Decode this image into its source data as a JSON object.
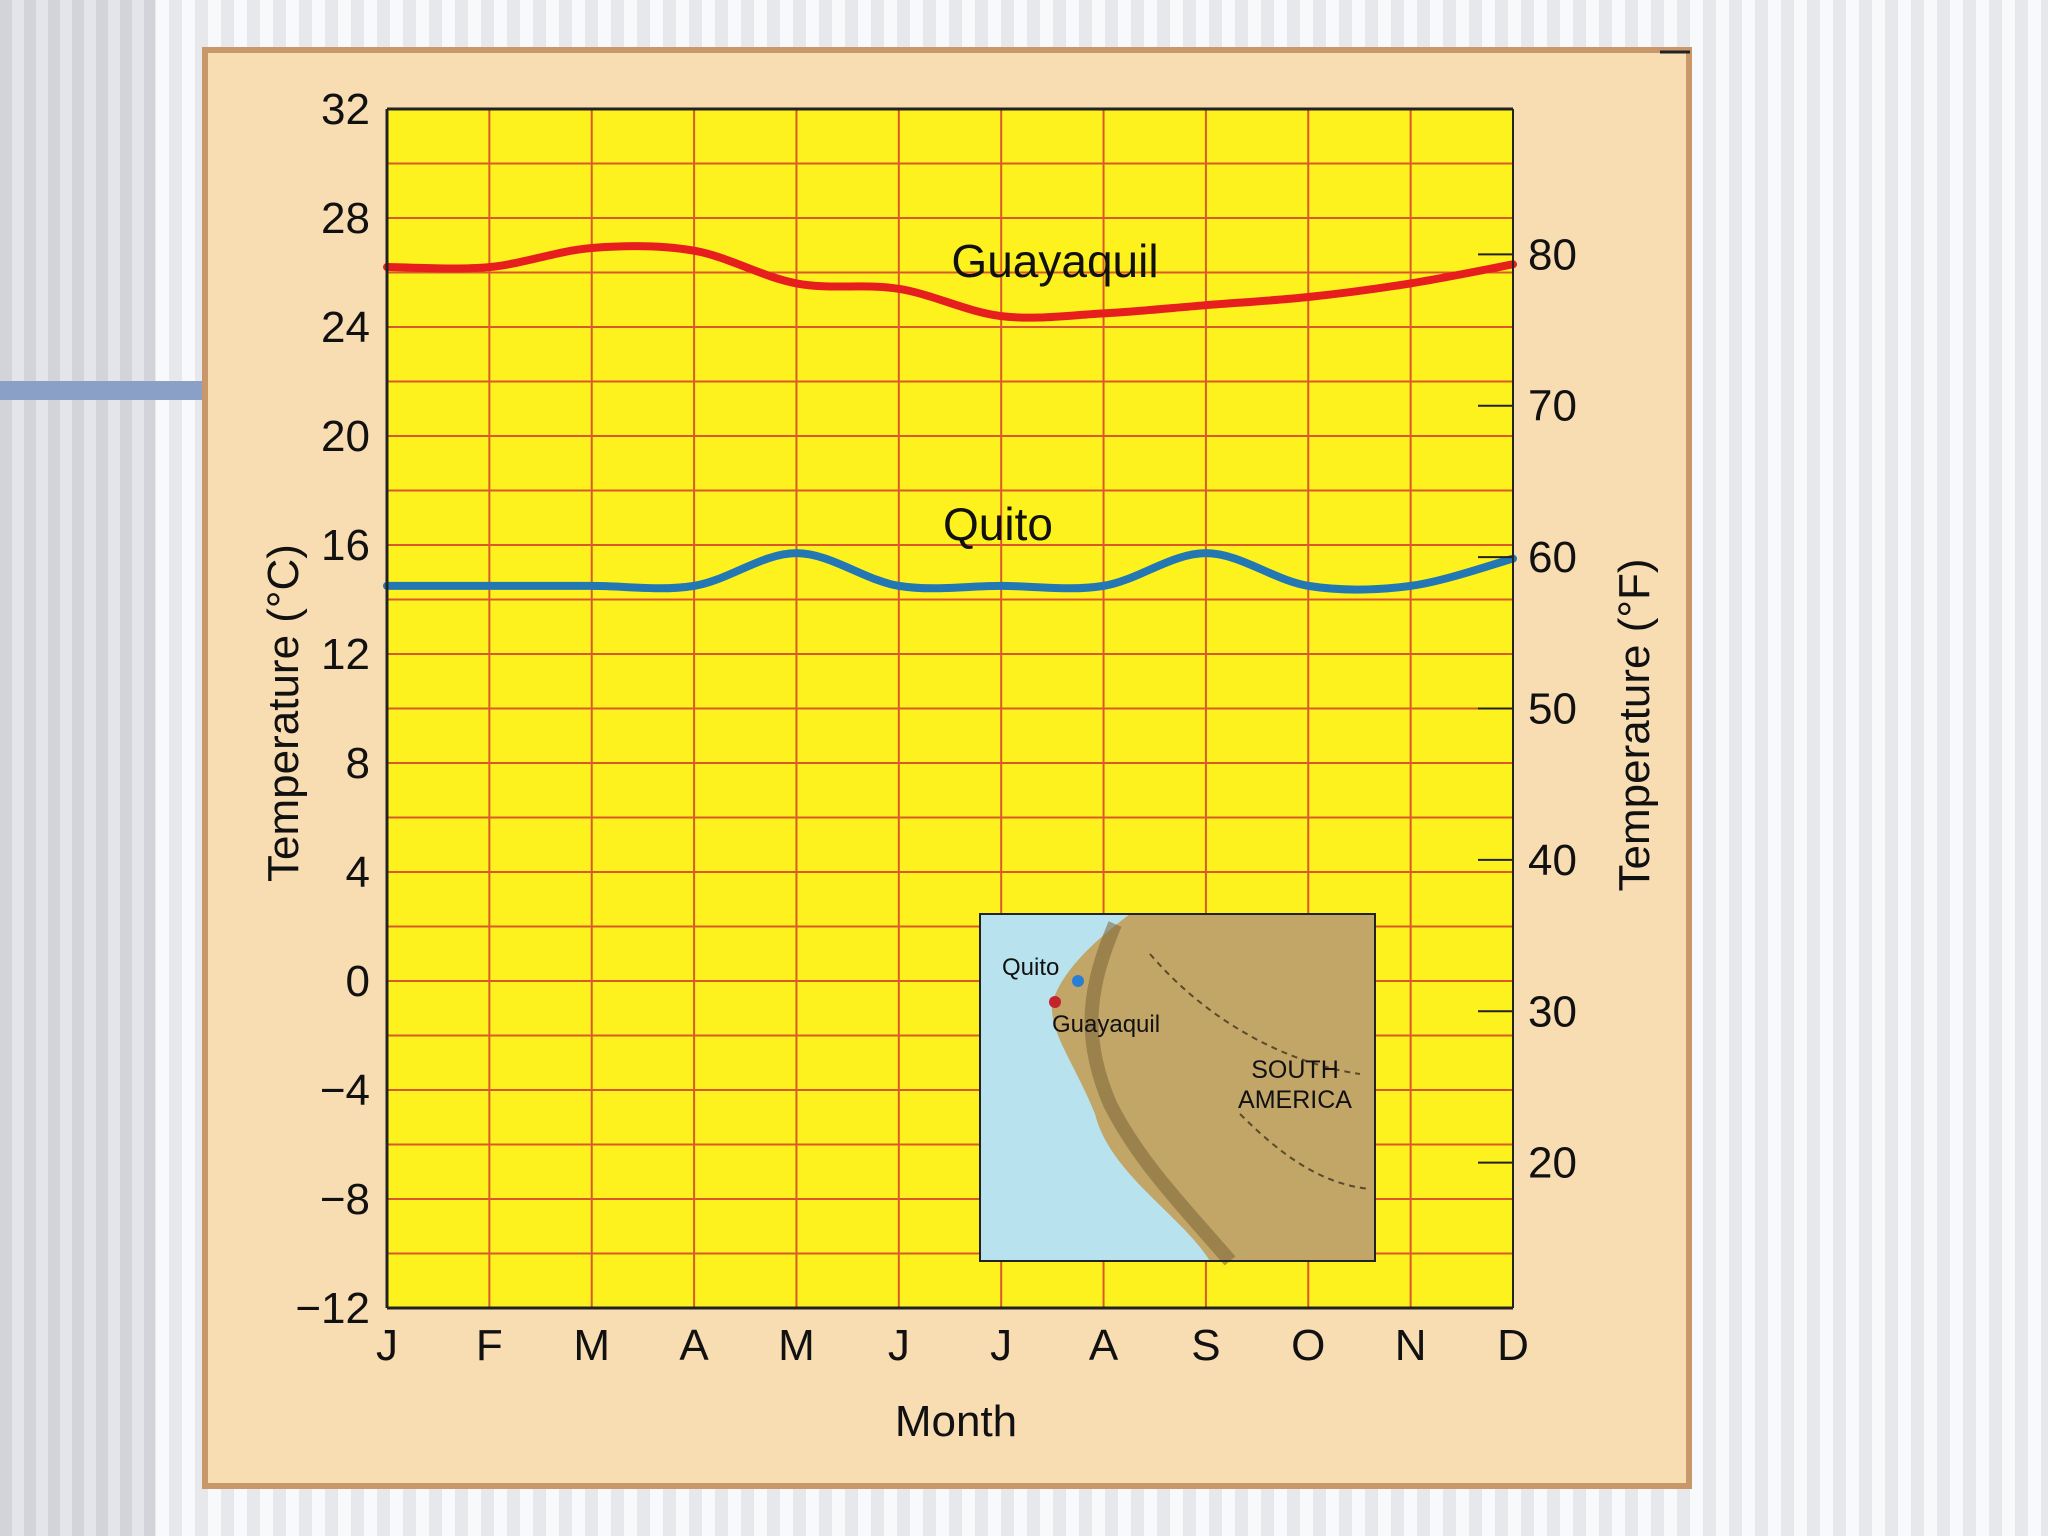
{
  "chart_data": {
    "type": "line",
    "categories": [
      "J",
      "F",
      "M",
      "A",
      "M",
      "J",
      "J",
      "A",
      "S",
      "O",
      "N",
      "D"
    ],
    "xlabel": "Month",
    "ylabel": "Temperature (°C)",
    "ylabel_right": "Temperature (°F)",
    "ylim": [
      -12,
      32
    ],
    "yticks": [
      32,
      28,
      24,
      20,
      16,
      12,
      8,
      4,
      0,
      -4,
      -8,
      -12
    ],
    "ytick_labels": [
      "32",
      "28",
      "24",
      "20",
      "16",
      "12",
      "8",
      "4",
      "0",
      "−4",
      "−8",
      "−12"
    ],
    "yticks_right": [
      80,
      70,
      60,
      50,
      40,
      30,
      20
    ],
    "grid": true,
    "series": [
      {
        "name": "Guayaquil",
        "values": [
          26.2,
          26.2,
          26.9,
          26.8,
          25.6,
          25.4,
          24.4,
          24.5,
          24.8,
          25.1,
          25.6,
          26.3
        ]
      },
      {
        "name": "Quito",
        "values": [
          14.5,
          14.5,
          14.5,
          14.5,
          15.7,
          14.5,
          14.5,
          14.5,
          15.7,
          14.5,
          14.5,
          15.5
        ]
      }
    ],
    "inset_map": {
      "labels": [
        "Quito",
        "Guayaquil",
        "SOUTH",
        "AMERICA"
      ]
    }
  },
  "colors": {
    "panel": "#f8dcb2",
    "panel_border": "#c8986a",
    "plot_bg": "#fef21e",
    "grid": "#d85a2a",
    "guayaquil": "#e61e1e",
    "quito": "#2378b4",
    "accent_bar": "#8aa0c7",
    "ocean": "#b9e2ef",
    "land": "#c2a668"
  }
}
